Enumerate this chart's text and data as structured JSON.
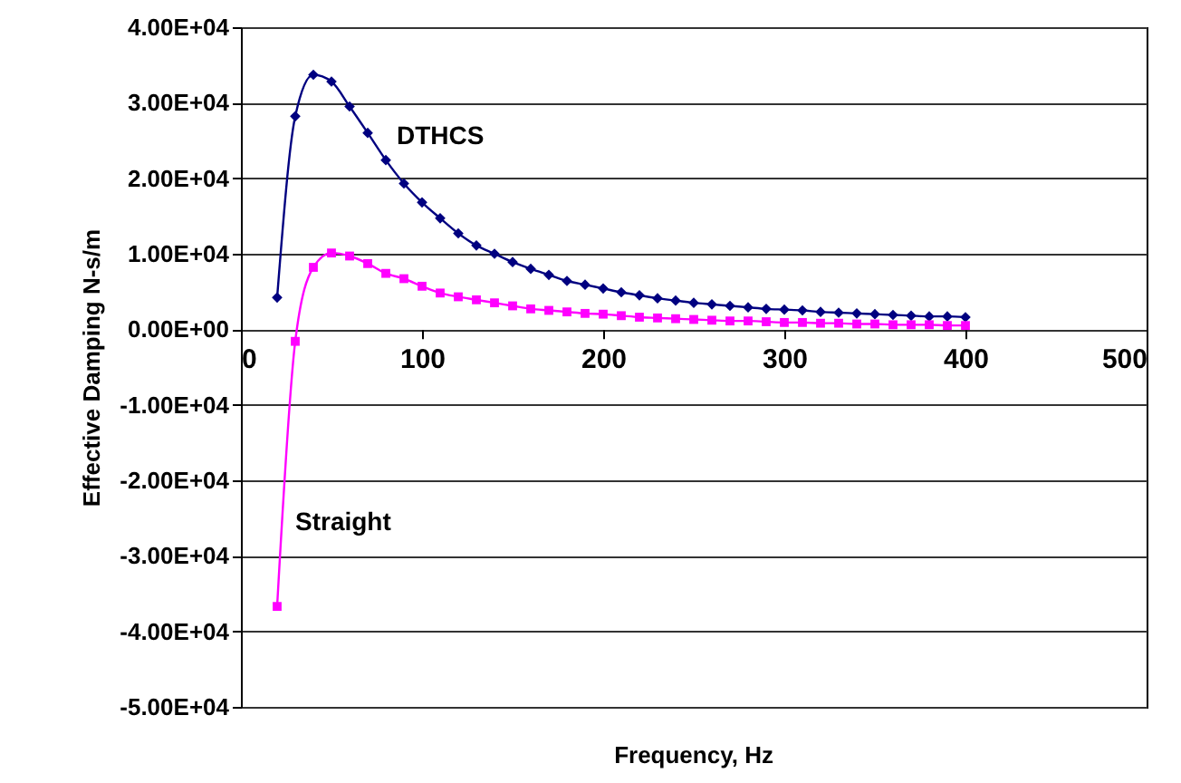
{
  "chart_data": {
    "type": "line",
    "xlabel": "Frequency, Hz",
    "ylabel": "Effective Damping N-s/m",
    "x": [
      20,
      30,
      40,
      50,
      60,
      70,
      80,
      90,
      100,
      110,
      120,
      130,
      140,
      150,
      160,
      170,
      180,
      190,
      200,
      210,
      220,
      230,
      240,
      250,
      260,
      270,
      280,
      290,
      300,
      310,
      320,
      330,
      340,
      350,
      360,
      370,
      380,
      390,
      400
    ],
    "series": [
      {
        "name": "DTHCS",
        "color": "#000080",
        "marker": "diamond",
        "values": [
          4200,
          28200,
          33700,
          32800,
          29500,
          26000,
          22400,
          19300,
          16800,
          14700,
          12700,
          11100,
          10000,
          8900,
          8000,
          7200,
          6400,
          5900,
          5400,
          4900,
          4500,
          4100,
          3800,
          3500,
          3300,
          3100,
          2900,
          2700,
          2600,
          2500,
          2300,
          2200,
          2100,
          2000,
          1900,
          1800,
          1700,
          1700,
          1600
        ]
      },
      {
        "name": "Straight",
        "color": "#ff00ff",
        "marker": "square",
        "values": [
          -36700,
          -1600,
          8200,
          10100,
          9700,
          8700,
          7400,
          6700,
          5700,
          4800,
          4300,
          3900,
          3500,
          3100,
          2700,
          2500,
          2300,
          2100,
          2000,
          1800,
          1600,
          1500,
          1400,
          1300,
          1200,
          1100,
          1100,
          1000,
          900,
          900,
          800,
          800,
          700,
          700,
          600,
          600,
          600,
          500,
          500
        ]
      }
    ],
    "xlim": [
      0,
      500
    ],
    "xticks": [
      0,
      100,
      200,
      300,
      400,
      500
    ],
    "ylim": [
      -50000,
      40000
    ],
    "yticks": [
      {
        "value": -50000,
        "label": "-5.00E+04"
      },
      {
        "value": -40000,
        "label": "-4.00E+04"
      },
      {
        "value": -30000,
        "label": "-3.00E+04"
      },
      {
        "value": -20000,
        "label": "-2.00E+04"
      },
      {
        "value": -10000,
        "label": "-1.00E+04"
      },
      {
        "value": 0,
        "label": "0.00E+00"
      },
      {
        "value": 10000,
        "label": "1.00E+04"
      },
      {
        "value": 20000,
        "label": "2.00E+04"
      },
      {
        "value": 30000,
        "label": "3.00E+04"
      },
      {
        "value": 40000,
        "label": "4.00E+04"
      }
    ],
    "grid": "y",
    "line_style": "solid"
  }
}
